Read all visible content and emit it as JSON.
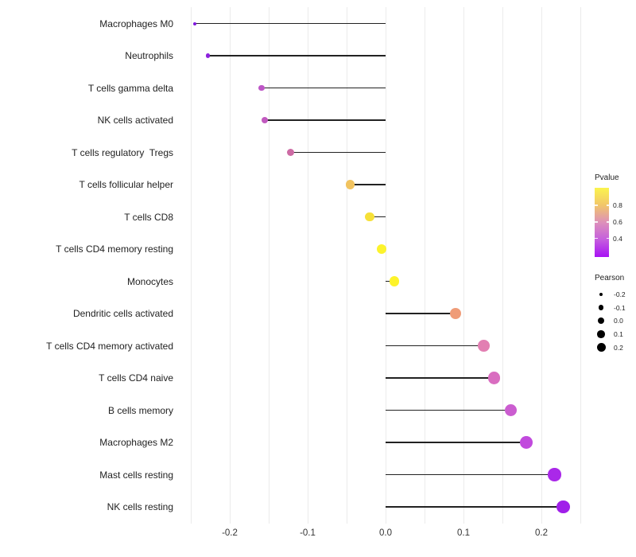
{
  "chart_data": {
    "type": "lollipop",
    "title": "",
    "xlabel": "",
    "ylabel": "",
    "categories": [
      "Macrophages M0",
      "Neutrophils",
      "T cells gamma delta",
      "NK cells activated",
      "T cells regulatory  Tregs",
      "T cells follicular helper",
      "T cells CD8",
      "T cells CD4 memory resting",
      "Monocytes",
      "Dendritic cells activated",
      "T cells CD4 memory activated",
      "T cells CD4 naive",
      "B cells memory",
      "Macrophages M2",
      "Mast cells resting",
      "NK cells resting"
    ],
    "series": [
      {
        "name": "Pearson",
        "values": [
          -0.245,
          -0.228,
          -0.159,
          -0.155,
          -0.122,
          -0.045,
          -0.02,
          -0.005,
          0.011,
          0.09,
          0.126,
          0.139,
          0.161,
          0.181,
          0.217,
          0.228
        ]
      }
    ],
    "point_colors": [
      "#8018dd",
      "#8d22dd",
      "#bd55c6",
      "#c159bf",
      "#cd6ba4",
      "#f1c35f",
      "#f6e038",
      "#fcf32c",
      "#fdf32a",
      "#ef9c78",
      "#e27fb2",
      "#d96dc0",
      "#cb5dd0",
      "#c14add",
      "#aa28e9",
      "#a01fe9"
    ],
    "x_ticks": [
      -0.2,
      -0.1,
      0,
      0.1,
      0.2
    ],
    "x_tick_labels": [
      "-0.2",
      "-0.1",
      "0.0",
      "0.1",
      "0.2"
    ],
    "gridline_values": [
      -0.25,
      -0.2,
      -0.15,
      -0.1,
      -0.05,
      0,
      0.05,
      0.1,
      0.15,
      0.2,
      0.25
    ],
    "xlim": [
      -0.28,
      0.26
    ],
    "baseline": 0,
    "grid": "vertical-only",
    "legend_position": "right"
  },
  "legends": {
    "pvalue": {
      "title": "Pvalue",
      "tick_labels": [
        "0.8",
        "0.6",
        "0.4"
      ],
      "gradient": [
        "#fbf44d",
        "#f2c66a",
        "#dd90ba",
        "#c55ede",
        "#a812f4"
      ]
    },
    "pearson": {
      "title": "Pearson",
      "labels": [
        "-0.2",
        "-0.1",
        "0.0",
        "0.1",
        "0.2"
      ]
    }
  },
  "colors": {
    "background": "#ffffff",
    "stem": "#222222",
    "gridline": "#ebebeb",
    "axis_text": "#333333",
    "legend_dot": "#000000"
  }
}
